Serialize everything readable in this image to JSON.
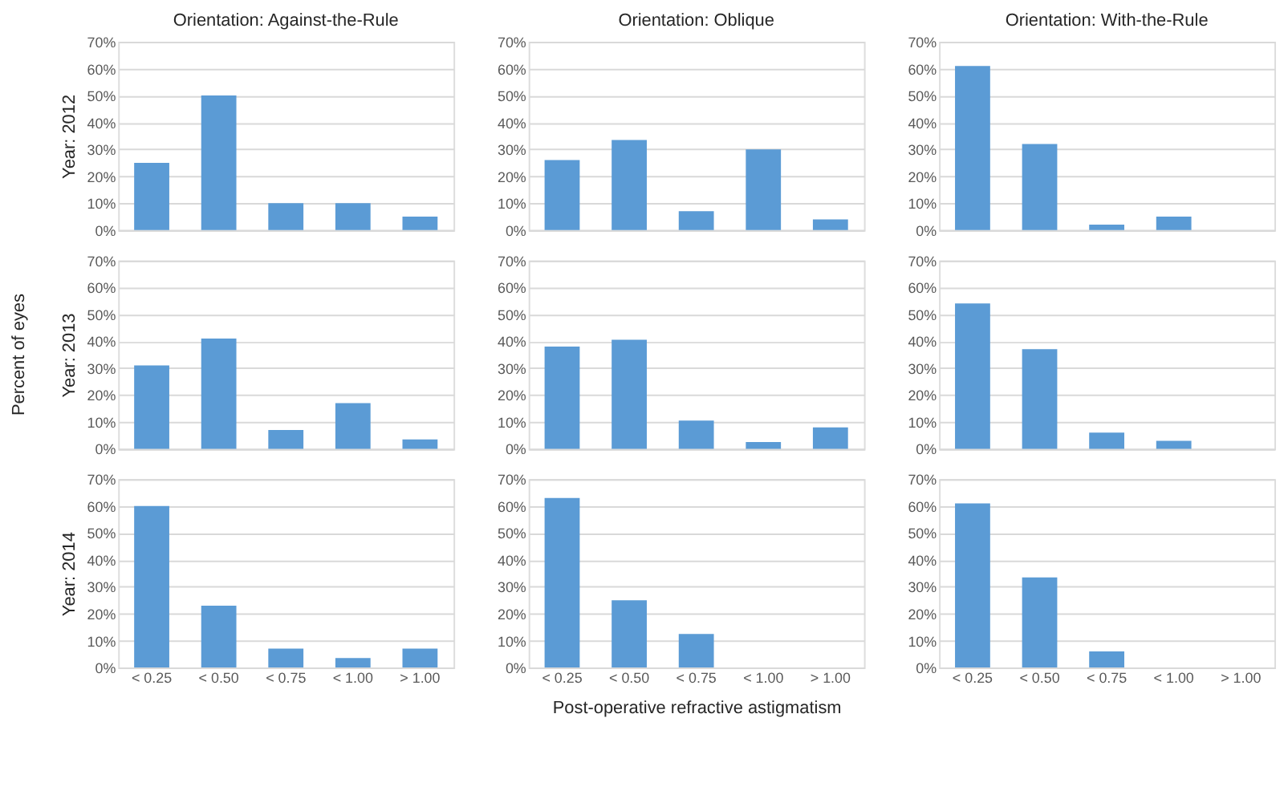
{
  "chart_data": [
    {
      "type": "bar",
      "title": "Orientation: Against-the-Rule",
      "ylabel": "Year: 2012",
      "categories": [
        null,
        null,
        null,
        null,
        null
      ],
      "values": [
        25,
        50,
        10,
        10,
        5
      ],
      "color": "#5b9bd5",
      "ylim": [
        0,
        70
      ],
      "yticks": [
        {
          "value": 0,
          "label": "0%"
        },
        {
          "value": 10,
          "label": "10%"
        },
        {
          "value": 20,
          "label": "20%"
        },
        {
          "value": 30,
          "label": "30%"
        },
        {
          "value": 40,
          "label": "40%"
        },
        {
          "value": 50,
          "label": "50%"
        },
        {
          "value": 60,
          "label": "60%"
        },
        {
          "value": 70,
          "label": "70%"
        }
      ],
      "grid": "y",
      "tick_labels": "y"
    },
    {
      "type": "bar",
      "title": "Orientation: Oblique",
      "categories": [
        null,
        null,
        null,
        null,
        null
      ],
      "values": [
        26,
        33.5,
        7,
        30,
        4
      ],
      "color": "#5b9bd5",
      "ylim": [
        0,
        70
      ],
      "yticks": [
        {
          "value": 0,
          "label": "0%"
        },
        {
          "value": 10,
          "label": "10%"
        },
        {
          "value": 20,
          "label": "20%"
        },
        {
          "value": 30,
          "label": "30%"
        },
        {
          "value": 40,
          "label": "40%"
        },
        {
          "value": 50,
          "label": "50%"
        },
        {
          "value": 60,
          "label": "60%"
        },
        {
          "value": 70,
          "label": "70%"
        }
      ],
      "grid": "y",
      "tick_labels": "y"
    },
    {
      "type": "bar",
      "title": "Orientation: With-the-Rule",
      "categories": [
        null,
        null,
        null,
        null,
        null
      ],
      "values": [
        61,
        32,
        2,
        5,
        0
      ],
      "color": "#5b9bd5",
      "ylim": [
        0,
        70
      ],
      "yticks": [
        {
          "value": 0,
          "label": "0%"
        },
        {
          "value": 10,
          "label": "10%"
        },
        {
          "value": 20,
          "label": "20%"
        },
        {
          "value": 30,
          "label": "30%"
        },
        {
          "value": 40,
          "label": "40%"
        },
        {
          "value": 50,
          "label": "50%"
        },
        {
          "value": 60,
          "label": "60%"
        },
        {
          "value": 70,
          "label": "70%"
        }
      ],
      "grid": "y",
      "tick_labels": "y"
    },
    {
      "type": "bar",
      "ylabel": "Year: 2013",
      "annotations": [
        "Percent of eyes"
      ],
      "categories": [
        null,
        null,
        null,
        null,
        null
      ],
      "values": [
        31,
        41,
        7,
        17,
        3.5
      ],
      "color": "#5b9bd5",
      "ylim": [
        0,
        70
      ],
      "yticks": [
        {
          "value": 0,
          "label": "0%"
        },
        {
          "value": 10,
          "label": "10%"
        },
        {
          "value": 20,
          "label": "20%"
        },
        {
          "value": 30,
          "label": "30%"
        },
        {
          "value": 40,
          "label": "40%"
        },
        {
          "value": 50,
          "label": "50%"
        },
        {
          "value": 60,
          "label": "60%"
        },
        {
          "value": 70,
          "label": "70%"
        }
      ],
      "grid": "y",
      "tick_labels": "y"
    },
    {
      "type": "bar",
      "categories": [
        null,
        null,
        null,
        null,
        null
      ],
      "values": [
        38,
        40.5,
        10.5,
        2.5,
        8
      ],
      "color": "#5b9bd5",
      "ylim": [
        0,
        70
      ],
      "yticks": [
        {
          "value": 0,
          "label": "0%"
        },
        {
          "value": 10,
          "label": "10%"
        },
        {
          "value": 20,
          "label": "20%"
        },
        {
          "value": 30,
          "label": "30%"
        },
        {
          "value": 40,
          "label": "40%"
        },
        {
          "value": 50,
          "label": "50%"
        },
        {
          "value": 60,
          "label": "60%"
        },
        {
          "value": 70,
          "label": "70%"
        }
      ],
      "grid": "y",
      "tick_labels": "y"
    },
    {
      "type": "bar",
      "categories": [
        null,
        null,
        null,
        null,
        null
      ],
      "values": [
        54,
        37,
        6,
        3,
        0
      ],
      "color": "#5b9bd5",
      "ylim": [
        0,
        70
      ],
      "yticks": [
        {
          "value": 0,
          "label": "0%"
        },
        {
          "value": 10,
          "label": "10%"
        },
        {
          "value": 20,
          "label": "20%"
        },
        {
          "value": 30,
          "label": "30%"
        },
        {
          "value": 40,
          "label": "40%"
        },
        {
          "value": 50,
          "label": "50%"
        },
        {
          "value": 60,
          "label": "60%"
        },
        {
          "value": 70,
          "label": "70%"
        }
      ],
      "grid": "y",
      "tick_labels": "y"
    },
    {
      "type": "bar",
      "ylabel": "Year: 2014",
      "categories": [
        "< 0.25",
        "< 0.50",
        "< 0.75",
        "< 1.00",
        "> 1.00"
      ],
      "values": [
        60,
        23,
        7,
        3.5,
        7
      ],
      "color": "#5b9bd5",
      "ylim": [
        0,
        70
      ],
      "yticks": [
        {
          "value": 0,
          "label": "0%"
        },
        {
          "value": 10,
          "label": "10%"
        },
        {
          "value": 20,
          "label": "20%"
        },
        {
          "value": 30,
          "label": "30%"
        },
        {
          "value": 40,
          "label": "40%"
        },
        {
          "value": 50,
          "label": "50%"
        },
        {
          "value": 60,
          "label": "60%"
        },
        {
          "value": 70,
          "label": "70%"
        }
      ],
      "grid": "y"
    },
    {
      "type": "bar",
      "xlabel": "Post-operative refractive astigmatism",
      "categories": [
        "< 0.25",
        "< 0.50",
        "< 0.75",
        "< 1.00",
        "> 1.00"
      ],
      "values": [
        63,
        25,
        12.5,
        0,
        0
      ],
      "color": "#5b9bd5",
      "ylim": [
        0,
        70
      ],
      "yticks": [
        {
          "value": 0,
          "label": "0%"
        },
        {
          "value": 10,
          "label": "10%"
        },
        {
          "value": 20,
          "label": "20%"
        },
        {
          "value": 30,
          "label": "30%"
        },
        {
          "value": 40,
          "label": "40%"
        },
        {
          "value": 50,
          "label": "50%"
        },
        {
          "value": 60,
          "label": "60%"
        },
        {
          "value": 70,
          "label": "70%"
        }
      ],
      "grid": "y"
    },
    {
      "type": "bar",
      "categories": [
        "< 0.25",
        "< 0.50",
        "< 0.75",
        "< 1.00",
        "> 1.00"
      ],
      "values": [
        61,
        33.5,
        6,
        0,
        0
      ],
      "color": "#5b9bd5",
      "ylim": [
        0,
        70
      ],
      "yticks": [
        {
          "value": 0,
          "label": "0%"
        },
        {
          "value": 10,
          "label": "10%"
        },
        {
          "value": 20,
          "label": "20%"
        },
        {
          "value": 30,
          "label": "30%"
        },
        {
          "value": 40,
          "label": "40%"
        },
        {
          "value": 50,
          "label": "50%"
        },
        {
          "value": 60,
          "label": "60%"
        },
        {
          "value": 70,
          "label": "70%"
        }
      ],
      "grid": "y"
    }
  ]
}
